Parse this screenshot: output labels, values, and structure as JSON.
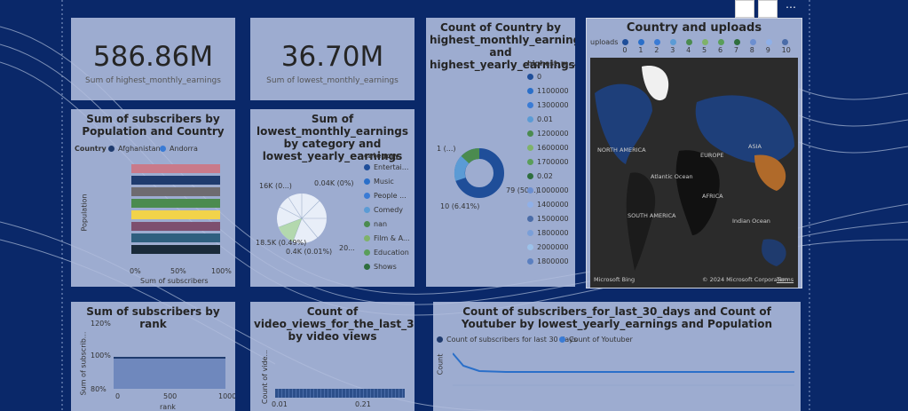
{
  "cards": [
    {
      "value": "586.86M",
      "label": "Sum of highest_monthly_earnings"
    },
    {
      "value": "36.70M",
      "label": "Sum of lowest_monthly_earnings"
    }
  ],
  "bar_panel": {
    "title": "Sum of subscribers by Population and Country",
    "legend_title": "Country",
    "legend": [
      "Afghanistan",
      "Andorra"
    ],
    "y_axis": "Population",
    "x_axis": "Sum of subscribers",
    "x_ticks": [
      "0%",
      "50%",
      "100%"
    ]
  },
  "pie_panel": {
    "title": "Sum of lowest_monthly_earnings by category and lowest_yearly_earnings",
    "legend_title": "category",
    "legend": [
      "Entertai...",
      "Music",
      "People ...",
      "Comedy",
      "nan",
      "Film & A...",
      "Education",
      "Shows"
    ],
    "labels": [
      "16K (0...)",
      "0.04K (0%)",
      "18.5K (0.49%)",
      "0.4K (0.01%)",
      "20..."
    ]
  },
  "donut_panel": {
    "title": "Count of Country by highest_monthly_earnings and highest_yearly_earnings",
    "legend_title": "highest_m...",
    "legend": [
      "0",
      "1100000",
      "1300000",
      "0.01",
      "1200000",
      "1600000",
      "1700000",
      "0.02",
      "1000000",
      "1400000",
      "1500000",
      "1800000",
      "2000000",
      "1800000"
    ],
    "labels": [
      "1 (...)",
      "79 (50...)",
      "10 (6.41%)"
    ]
  },
  "map_panel": {
    "title": "Country and uploads",
    "legend_title": "uploads",
    "legend": [
      "0",
      "1",
      "2",
      "3",
      "4",
      "5",
      "6",
      "7",
      "8",
      "9",
      "10"
    ],
    "regions": [
      "NORTH AMERICA",
      "EUROPE",
      "ASIA",
      "AFRICA",
      "SOUTH AMERICA",
      "Atlantic Ocean",
      "Indian Ocean"
    ],
    "attribution": [
      "Microsoft Bing",
      "© 2024 Microsoft Corporation",
      "Terms"
    ]
  },
  "rank_panel": {
    "title": "Sum of subscribers by rank",
    "y_axis": "Sum of subscrib...",
    "y_ticks": [
      "120%",
      "100%",
      "80%"
    ],
    "x_ticks": [
      "0",
      "500",
      "1000"
    ],
    "x_axis": "rank"
  },
  "views_panel": {
    "title": "Count of video_views_for_the_last_30_days by video views",
    "y_axis": "Count of vide...",
    "x_ticks": [
      "0.01",
      "0.21"
    ]
  },
  "combo_panel": {
    "title": "Count of subscribers_for_last_30_days and Count of Youtuber by lowest_yearly_earnings and Population",
    "legend": [
      "Count of subscribers for last 30 days",
      "Count of Youtuber"
    ],
    "y_axis": "Count"
  }
}
